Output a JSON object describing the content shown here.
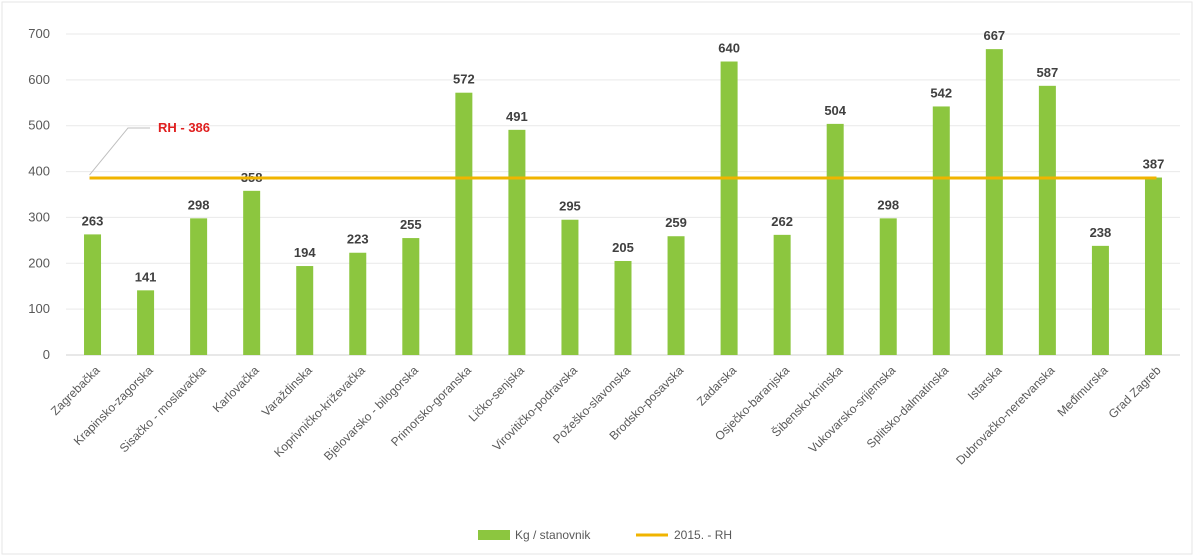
{
  "chart_data": {
    "type": "bar",
    "categories": [
      "Zagrebačka",
      "Krapinsko-zagorska",
      "Sisačko - moslavačka",
      "Karlovačka",
      "Varaždinska",
      "Koprivničko-križevačka",
      "Bjelovarsko - bilogorska",
      "Primorsko-goranska",
      "Ličko-senjska",
      "Virovitičko-podravska",
      "Požeško-slavonska",
      "Brodsko-posavska",
      "Zadarska",
      "Osječko-baranjska",
      "Šibensko-kninska",
      "Vukovarsko-srijemska",
      "Splitsko-dalmatinska",
      "Istarska",
      "Dubrovačko-neretvanska",
      "Međimurska",
      "Grad Zagreb"
    ],
    "series": [
      {
        "name": "Kg / stanovnik",
        "type": "bar",
        "color": "#8cc63f",
        "values": [
          263,
          141,
          298,
          358,
          194,
          223,
          255,
          572,
          491,
          295,
          205,
          259,
          640,
          262,
          504,
          298,
          542,
          667,
          587,
          238,
          387
        ]
      },
      {
        "name": "2015. - RH",
        "type": "line",
        "color": "#f0b400",
        "value": 386
      }
    ],
    "data_labels": [
      "263",
      "141",
      "298",
      "358",
      "194",
      "223",
      "255",
      "572",
      "491",
      "295",
      "205",
      "259",
      "640",
      "262",
      "504",
      "298",
      "542",
      "667",
      "587",
      "238",
      "387"
    ],
    "annotation": "RH - 386",
    "yticks": [
      "0",
      "100",
      "200",
      "300",
      "400",
      "500",
      "600",
      "700"
    ],
    "ylim": [
      0,
      700
    ],
    "grid": true,
    "legend_position": "bottom",
    "title": "",
    "xlabel": "",
    "ylabel": ""
  }
}
